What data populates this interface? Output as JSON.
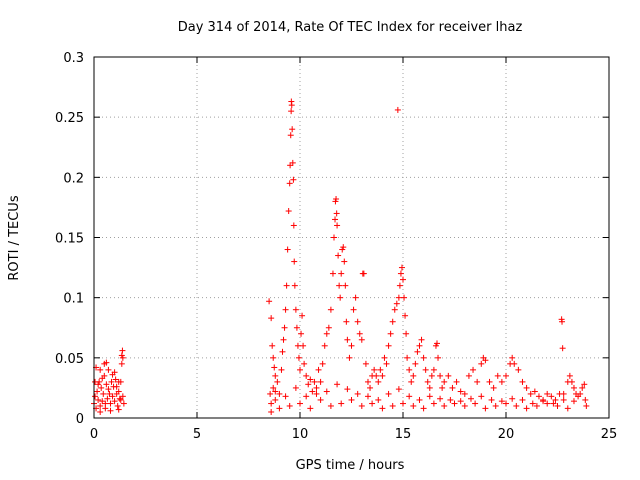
{
  "chart_data": {
    "type": "scatter",
    "title": "Day 314 of 2014, Rate Of TEC Index for receiver lhaz",
    "xlabel": "GPS time / hours",
    "ylabel": "ROTI / TECUs",
    "xlim": [
      0,
      25
    ],
    "ylim": [
      0,
      0.3
    ],
    "xticks": [
      "0",
      "5",
      "10",
      "15",
      "20",
      "25"
    ],
    "yticks": [
      "0",
      "0.05",
      "0.1",
      "0.15",
      "0.2",
      "0.25",
      "0.3"
    ],
    "grid": true,
    "marker": "+",
    "colors": {
      "points": "#ff0000",
      "grid": "#a0a0a0"
    },
    "series": [
      {
        "points": [
          [
            0.0,
            0.012
          ],
          [
            0.05,
            0.018
          ],
          [
            0.1,
            0.008
          ],
          [
            0.15,
            0.022
          ],
          [
            0.2,
            0.015
          ],
          [
            0.25,
            0.03
          ],
          [
            0.3,
            0.01
          ],
          [
            0.35,
            0.025
          ],
          [
            0.4,
            0.014
          ],
          [
            0.45,
            0.02
          ],
          [
            0.5,
            0.035
          ],
          [
            0.55,
            0.012
          ],
          [
            0.6,
            0.028
          ],
          [
            0.65,
            0.016
          ],
          [
            0.7,
            0.04
          ],
          [
            0.75,
            0.02
          ],
          [
            0.8,
            0.012
          ],
          [
            0.85,
            0.03
          ],
          [
            0.9,
            0.018
          ],
          [
            0.95,
            0.026
          ],
          [
            1.0,
            0.014
          ],
          [
            1.05,
            0.032
          ],
          [
            1.1,
            0.02
          ],
          [
            1.15,
            0.01
          ],
          [
            1.2,
            0.022
          ],
          [
            1.25,
            0.016
          ],
          [
            1.3,
            0.03
          ],
          [
            1.35,
            0.045
          ],
          [
            1.4,
            0.018
          ],
          [
            1.45,
            0.012
          ],
          [
            0.1,
            0.042
          ],
          [
            0.3,
            0.04
          ],
          [
            0.5,
            0.045
          ],
          [
            0.6,
            0.046
          ],
          [
            0.3,
            0.005
          ],
          [
            0.8,
            0.006
          ],
          [
            1.2,
            0.007
          ],
          [
            1.35,
            0.052
          ],
          [
            1.38,
            0.056
          ],
          [
            1.4,
            0.05
          ],
          [
            0.2,
            0.028
          ],
          [
            0.4,
            0.033
          ],
          [
            0.7,
            0.024
          ],
          [
            0.9,
            0.036
          ],
          [
            1.1,
            0.026
          ],
          [
            1.3,
            0.015
          ],
          [
            0.05,
            0.03
          ],
          [
            0.55,
            0.008
          ],
          [
            1.0,
            0.038
          ],
          [
            1.2,
            0.03
          ],
          [
            8.5,
            0.097
          ],
          [
            8.6,
            0.083
          ],
          [
            8.65,
            0.06
          ],
          [
            8.7,
            0.05
          ],
          [
            8.75,
            0.042
          ],
          [
            8.8,
            0.035
          ],
          [
            8.55,
            0.02
          ],
          [
            8.6,
            0.012
          ],
          [
            8.7,
            0.025
          ],
          [
            8.8,
            0.015
          ],
          [
            8.9,
            0.03
          ],
          [
            9.0,
            0.02
          ],
          [
            9.1,
            0.04
          ],
          [
            9.15,
            0.055
          ],
          [
            9.2,
            0.065
          ],
          [
            9.25,
            0.075
          ],
          [
            9.3,
            0.09
          ],
          [
            9.35,
            0.11
          ],
          [
            9.4,
            0.14
          ],
          [
            9.45,
            0.172
          ],
          [
            9.5,
            0.195
          ],
          [
            9.52,
            0.21
          ],
          [
            9.55,
            0.235
          ],
          [
            9.57,
            0.255
          ],
          [
            9.58,
            0.263
          ],
          [
            9.6,
            0.26
          ],
          [
            9.62,
            0.24
          ],
          [
            9.65,
            0.212
          ],
          [
            9.68,
            0.198
          ],
          [
            9.7,
            0.16
          ],
          [
            9.72,
            0.13
          ],
          [
            9.75,
            0.11
          ],
          [
            9.8,
            0.09
          ],
          [
            9.85,
            0.075
          ],
          [
            9.9,
            0.06
          ],
          [
            9.95,
            0.05
          ],
          [
            10.0,
            0.04
          ],
          [
            10.05,
            0.07
          ],
          [
            10.1,
            0.085
          ],
          [
            10.15,
            0.06
          ],
          [
            10.2,
            0.045
          ],
          [
            10.3,
            0.035
          ],
          [
            10.4,
            0.028
          ],
          [
            10.5,
            0.032
          ],
          [
            10.6,
            0.022
          ],
          [
            10.7,
            0.03
          ],
          [
            10.8,
            0.025
          ],
          [
            10.9,
            0.04
          ],
          [
            11.0,
            0.03
          ],
          [
            11.1,
            0.045
          ],
          [
            11.2,
            0.06
          ],
          [
            11.3,
            0.07
          ],
          [
            11.4,
            0.075
          ],
          [
            11.5,
            0.09
          ],
          [
            11.6,
            0.12
          ],
          [
            11.65,
            0.15
          ],
          [
            11.7,
            0.165
          ],
          [
            11.72,
            0.18
          ],
          [
            11.75,
            0.182
          ],
          [
            11.78,
            0.17
          ],
          [
            11.8,
            0.16
          ],
          [
            11.85,
            0.135
          ],
          [
            11.9,
            0.11
          ],
          [
            11.95,
            0.1
          ],
          [
            12.0,
            0.12
          ],
          [
            12.05,
            0.14
          ],
          [
            12.1,
            0.142
          ],
          [
            12.15,
            0.13
          ],
          [
            12.2,
            0.11
          ],
          [
            12.25,
            0.08
          ],
          [
            12.3,
            0.065
          ],
          [
            12.4,
            0.05
          ],
          [
            12.5,
            0.06
          ],
          [
            12.6,
            0.09
          ],
          [
            12.7,
            0.1
          ],
          [
            12.8,
            0.08
          ],
          [
            12.9,
            0.07
          ],
          [
            13.0,
            0.065
          ],
          [
            13.05,
            0.12
          ],
          [
            13.1,
            0.12
          ],
          [
            13.2,
            0.045
          ],
          [
            13.3,
            0.03
          ],
          [
            13.4,
            0.025
          ],
          [
            13.5,
            0.035
          ],
          [
            13.6,
            0.04
          ],
          [
            13.7,
            0.035
          ],
          [
            13.8,
            0.03
          ],
          [
            13.9,
            0.04
          ],
          [
            14.0,
            0.035
          ],
          [
            14.1,
            0.05
          ],
          [
            14.2,
            0.045
          ],
          [
            14.3,
            0.06
          ],
          [
            14.4,
            0.07
          ],
          [
            14.5,
            0.08
          ],
          [
            14.6,
            0.09
          ],
          [
            14.7,
            0.095
          ],
          [
            14.75,
            0.256
          ],
          [
            14.8,
            0.1
          ],
          [
            14.85,
            0.11
          ],
          [
            14.9,
            0.12
          ],
          [
            14.95,
            0.125
          ],
          [
            15.0,
            0.115
          ],
          [
            15.05,
            0.1
          ],
          [
            15.1,
            0.085
          ],
          [
            15.15,
            0.07
          ],
          [
            15.2,
            0.05
          ],
          [
            15.3,
            0.04
          ],
          [
            15.4,
            0.03
          ],
          [
            15.5,
            0.035
          ],
          [
            15.6,
            0.045
          ],
          [
            15.7,
            0.055
          ],
          [
            15.8,
            0.06
          ],
          [
            15.9,
            0.065
          ],
          [
            16.0,
            0.05
          ],
          [
            16.1,
            0.04
          ],
          [
            16.2,
            0.03
          ],
          [
            16.3,
            0.025
          ],
          [
            16.4,
            0.035
          ],
          [
            16.5,
            0.04
          ],
          [
            16.6,
            0.06
          ],
          [
            16.65,
            0.062
          ],
          [
            16.7,
            0.05
          ],
          [
            16.8,
            0.035
          ],
          [
            16.9,
            0.025
          ],
          [
            17.0,
            0.03
          ],
          [
            17.2,
            0.035
          ],
          [
            17.4,
            0.025
          ],
          [
            17.6,
            0.03
          ],
          [
            17.8,
            0.022
          ],
          [
            18.0,
            0.02
          ],
          [
            18.2,
            0.035
          ],
          [
            18.4,
            0.04
          ],
          [
            18.6,
            0.03
          ],
          [
            18.8,
            0.045
          ],
          [
            18.9,
            0.05
          ],
          [
            19.0,
            0.048
          ],
          [
            19.2,
            0.03
          ],
          [
            19.4,
            0.025
          ],
          [
            19.6,
            0.035
          ],
          [
            19.8,
            0.03
          ],
          [
            20.0,
            0.035
          ],
          [
            20.2,
            0.045
          ],
          [
            20.3,
            0.05
          ],
          [
            20.4,
            0.045
          ],
          [
            20.6,
            0.04
          ],
          [
            20.8,
            0.03
          ],
          [
            21.0,
            0.025
          ],
          [
            21.2,
            0.02
          ],
          [
            21.4,
            0.022
          ],
          [
            21.6,
            0.018
          ],
          [
            21.8,
            0.015
          ],
          [
            22.0,
            0.02
          ],
          [
            22.2,
            0.018
          ],
          [
            22.4,
            0.015
          ],
          [
            22.6,
            0.02
          ],
          [
            22.7,
            0.082
          ],
          [
            22.72,
            0.08
          ],
          [
            22.75,
            0.058
          ],
          [
            22.8,
            0.02
          ],
          [
            23.0,
            0.03
          ],
          [
            23.1,
            0.035
          ],
          [
            23.2,
            0.03
          ],
          [
            23.3,
            0.025
          ],
          [
            23.4,
            0.02
          ],
          [
            23.5,
            0.018
          ],
          [
            23.6,
            0.02
          ],
          [
            23.7,
            0.025
          ],
          [
            23.8,
            0.028
          ],
          [
            23.85,
            0.015
          ],
          [
            23.9,
            0.01
          ],
          [
            8.6,
            0.005
          ],
          [
            9.0,
            0.008
          ],
          [
            9.5,
            0.01
          ],
          [
            10.0,
            0.012
          ],
          [
            10.5,
            0.008
          ],
          [
            11.0,
            0.015
          ],
          [
            11.5,
            0.01
          ],
          [
            12.0,
            0.012
          ],
          [
            12.5,
            0.015
          ],
          [
            13.0,
            0.01
          ],
          [
            13.5,
            0.012
          ],
          [
            14.0,
            0.008
          ],
          [
            14.5,
            0.01
          ],
          [
            15.0,
            0.012
          ],
          [
            15.5,
            0.01
          ],
          [
            16.0,
            0.008
          ],
          [
            16.5,
            0.012
          ],
          [
            17.0,
            0.01
          ],
          [
            17.5,
            0.012
          ],
          [
            18.0,
            0.01
          ],
          [
            18.5,
            0.012
          ],
          [
            19.0,
            0.008
          ],
          [
            19.5,
            0.01
          ],
          [
            20.0,
            0.012
          ],
          [
            20.5,
            0.01
          ],
          [
            21.0,
            0.008
          ],
          [
            21.5,
            0.01
          ],
          [
            22.0,
            0.012
          ],
          [
            22.5,
            0.01
          ],
          [
            23.0,
            0.008
          ],
          [
            8.8,
            0.022
          ],
          [
            9.3,
            0.018
          ],
          [
            9.8,
            0.025
          ],
          [
            10.3,
            0.018
          ],
          [
            10.8,
            0.02
          ],
          [
            11.3,
            0.022
          ],
          [
            11.8,
            0.028
          ],
          [
            12.3,
            0.024
          ],
          [
            12.8,
            0.02
          ],
          [
            13.3,
            0.018
          ],
          [
            13.8,
            0.015
          ],
          [
            14.3,
            0.02
          ],
          [
            14.8,
            0.024
          ],
          [
            15.3,
            0.018
          ],
          [
            15.8,
            0.015
          ],
          [
            16.3,
            0.018
          ],
          [
            16.8,
            0.016
          ],
          [
            17.3,
            0.015
          ],
          [
            17.8,
            0.014
          ],
          [
            18.3,
            0.016
          ],
          [
            18.8,
            0.018
          ],
          [
            19.3,
            0.015
          ],
          [
            19.8,
            0.014
          ],
          [
            20.3,
            0.016
          ],
          [
            20.8,
            0.015
          ],
          [
            21.3,
            0.012
          ],
          [
            21.8,
            0.014
          ],
          [
            22.3,
            0.012
          ],
          [
            22.8,
            0.015
          ],
          [
            23.3,
            0.014
          ]
        ]
      }
    ]
  }
}
